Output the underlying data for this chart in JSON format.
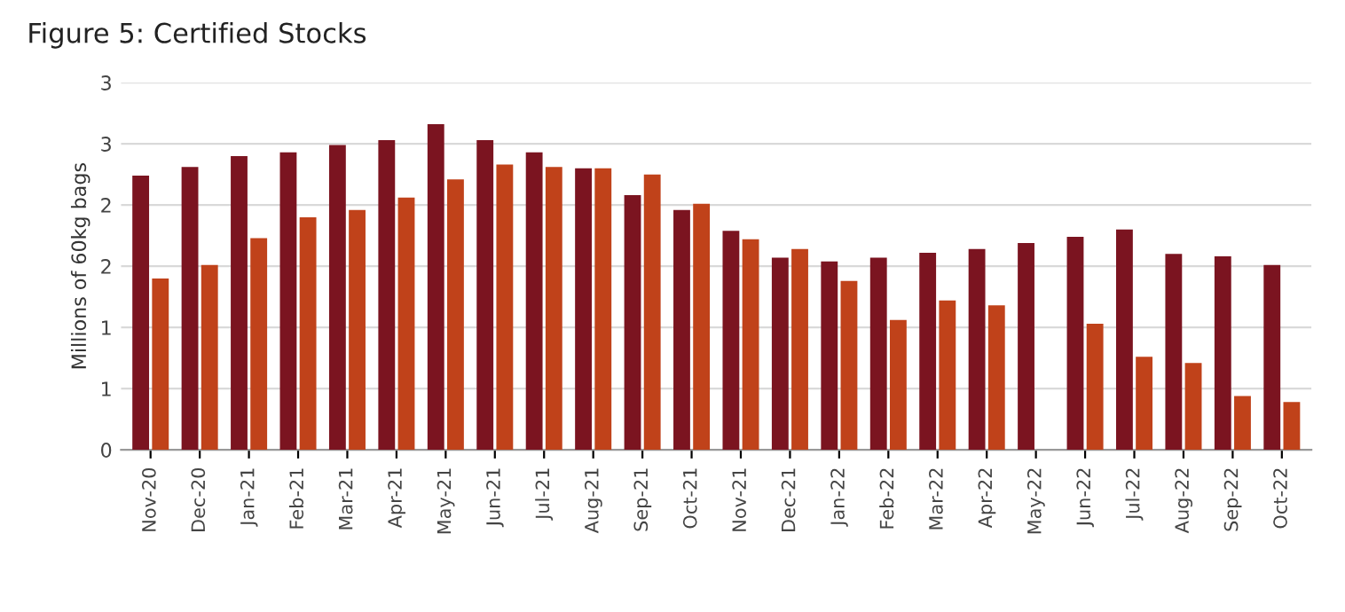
{
  "chart_data": {
    "type": "bar",
    "title": "Figure 5: Certified Stocks",
    "ylabel": "Millions of 60kg bags",
    "categories": [
      "Nov-20",
      "Dec-20",
      "Jan-21",
      "Feb-21",
      "Mar-21",
      "Apr-21",
      "May-21",
      "Jun-21",
      "Jul-21",
      "Aug-21",
      "Sep-21",
      "Oct-21",
      "Nov-21",
      "Dec-21",
      "Jan-22",
      "Feb-22",
      "Mar-22",
      "Apr-22",
      "May-22",
      "Jun-22",
      "Jul-22",
      "Aug-22",
      "Sep-22",
      "Oct-22"
    ],
    "series": [
      {
        "color": "#7b1420",
        "values": [
          2.24,
          2.31,
          2.4,
          2.43,
          2.49,
          2.53,
          2.66,
          2.53,
          2.43,
          2.3,
          2.08,
          1.96,
          1.79,
          1.57,
          1.54,
          1.57,
          1.61,
          1.64,
          1.69,
          1.74,
          1.8,
          1.6,
          1.58,
          1.51
        ]
      },
      {
        "color": "#c0421a",
        "values": [
          1.4,
          1.51,
          1.73,
          1.9,
          1.96,
          2.06,
          2.21,
          2.33,
          2.31,
          2.3,
          2.25,
          2.01,
          1.72,
          1.64,
          1.38,
          1.06,
          1.22,
          1.18,
          null,
          1.03,
          0.76,
          0.71,
          0.44,
          0.39
        ]
      }
    ],
    "ylim": [
      0,
      3
    ],
    "yticks": [
      0,
      {
        "value": 0.5,
        "label": "1"
      },
      1,
      {
        "value": 1.5,
        "label": "2"
      },
      2,
      {
        "value": 2.5,
        "label": "3"
      },
      3
    ],
    "grid": "y"
  }
}
